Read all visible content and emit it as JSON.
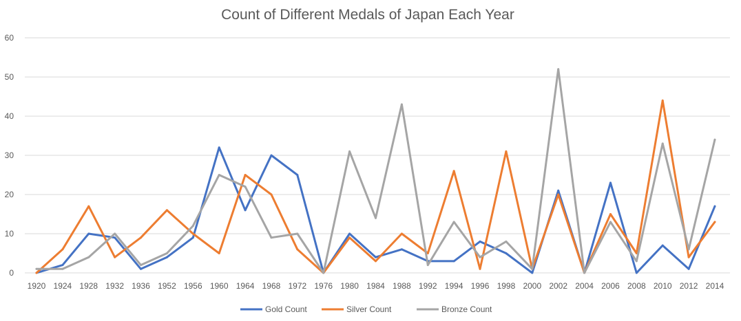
{
  "chart_data": {
    "type": "line",
    "title": "Count of Different Medals of Japan Each Year",
    "xlabel": "",
    "ylabel": "",
    "ylim": [
      0,
      60
    ],
    "yticks": [
      0,
      10,
      20,
      30,
      40,
      50,
      60
    ],
    "grid": true,
    "legend": "bottom",
    "categories": [
      "1920",
      "1924",
      "1928",
      "1932",
      "1936",
      "1952",
      "1956",
      "1960",
      "1964",
      "1968",
      "1972",
      "1976",
      "1980",
      "1984",
      "1988",
      "1992",
      "1994",
      "1996",
      "1998",
      "2000",
      "2002",
      "2004",
      "2006",
      "2008",
      "2010",
      "2012",
      "2014"
    ],
    "series": [
      {
        "name": "Gold Count",
        "color": "#4472C4",
        "values": [
          0,
          2,
          10,
          9,
          1,
          4,
          9,
          32,
          16,
          30,
          25,
          0,
          10,
          4,
          6,
          3,
          3,
          8,
          5,
          0,
          21,
          0,
          23,
          0,
          7,
          1,
          17
        ]
      },
      {
        "name": "Silver Count",
        "color": "#ED7D31",
        "values": [
          0,
          6,
          17,
          4,
          9,
          16,
          10,
          5,
          25,
          20,
          6,
          0,
          9,
          3,
          10,
          5,
          26,
          1,
          31,
          1,
          20,
          0,
          15,
          5,
          44,
          4,
          13
        ]
      },
      {
        "name": "Bronze Count",
        "color": "#A5A5A5",
        "values": [
          1,
          1,
          4,
          10,
          2,
          5,
          12,
          25,
          22,
          9,
          10,
          0,
          31,
          14,
          43,
          2,
          13,
          4,
          8,
          1,
          52,
          0,
          13,
          3,
          33,
          6,
          34
        ]
      }
    ]
  }
}
